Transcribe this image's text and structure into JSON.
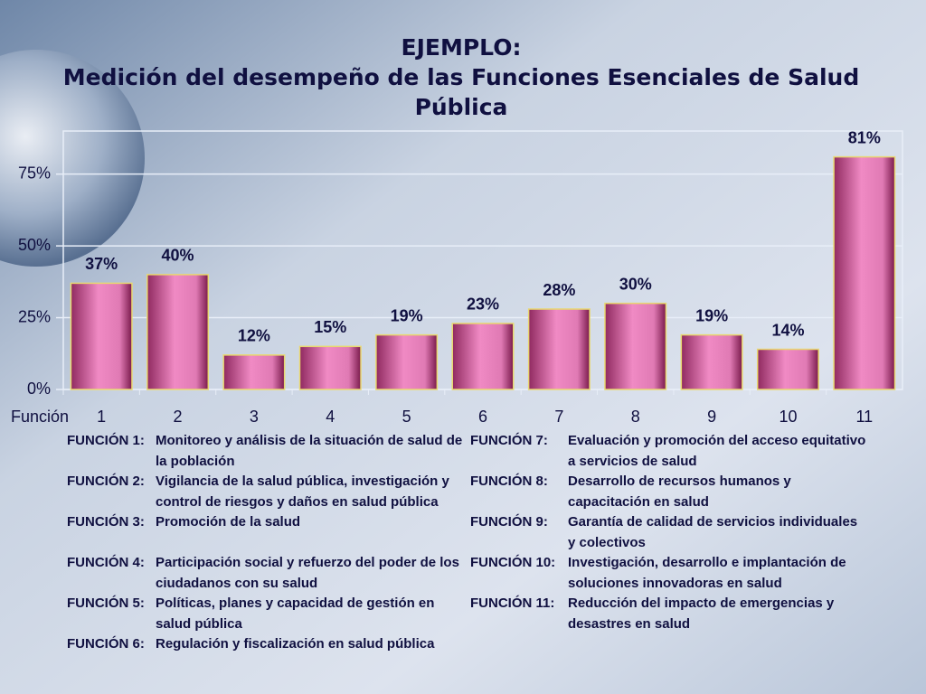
{
  "chart_data": {
    "type": "bar",
    "title": "EJEMPLO:",
    "subtitle": "Medición del desempeño de las Funciones Esenciales de Salud Pública",
    "x_label": "Función",
    "categories": [
      "1",
      "2",
      "3",
      "4",
      "5",
      "6",
      "7",
      "8",
      "9",
      "10",
      "11"
    ],
    "values": [
      37,
      40,
      12,
      15,
      19,
      23,
      28,
      30,
      19,
      14,
      81
    ],
    "value_labels": [
      "37%",
      "40%",
      "12%",
      "15%",
      "19%",
      "23%",
      "28%",
      "30%",
      "19%",
      "14%",
      "81%"
    ],
    "color": "#f08ac4",
    "ylim": [
      0,
      90
    ],
    "yticks": [
      {
        "value": 0,
        "label": "0%"
      },
      {
        "value": 25,
        "label": "25%"
      },
      {
        "value": 50,
        "label": "50%"
      },
      {
        "value": 75,
        "label": "75%"
      }
    ],
    "grid": true
  },
  "functions": [
    {
      "label": "FUNCIÓN 1:",
      "text": "Monitoreo y análisis de la situación de salud de la población"
    },
    {
      "label": "FUNCIÓN 2:",
      "text": "Vigilancia de la salud pública, investigación y control de riesgos y daños en salud pública"
    },
    {
      "label": "FUNCIÓN 3:",
      "text": "Promoción de la salud"
    },
    {
      "label": "FUNCIÓN 4:",
      "text": "Participación social y refuerzo del poder de los ciudadanos con su salud"
    },
    {
      "label": "FUNCIÓN 5:",
      "text": "Políticas, planes y capacidad de gestión en salud pública"
    },
    {
      "label": "FUNCIÓN 6:",
      "text": "Regulación y fiscalización en salud pública"
    },
    {
      "label": "FUNCIÓN 7:",
      "text": "Evaluación y promoción del acceso equitativo a servicios de salud"
    },
    {
      "label": "FUNCIÓN 8:",
      "text": "Desarrollo de recursos humanos y capacitación en salud"
    },
    {
      "label": "FUNCIÓN 9:",
      "text": "Garantía de calidad de servicios individuales y colectivos"
    },
    {
      "label": "FUNCIÓN 10:",
      "text": "Investigación, desarrollo e implantación de soluciones innovadoras en salud"
    },
    {
      "label": "FUNCIÓN 11:",
      "text": "Reducción del impacto de emergencias y desastres en salud"
    }
  ]
}
